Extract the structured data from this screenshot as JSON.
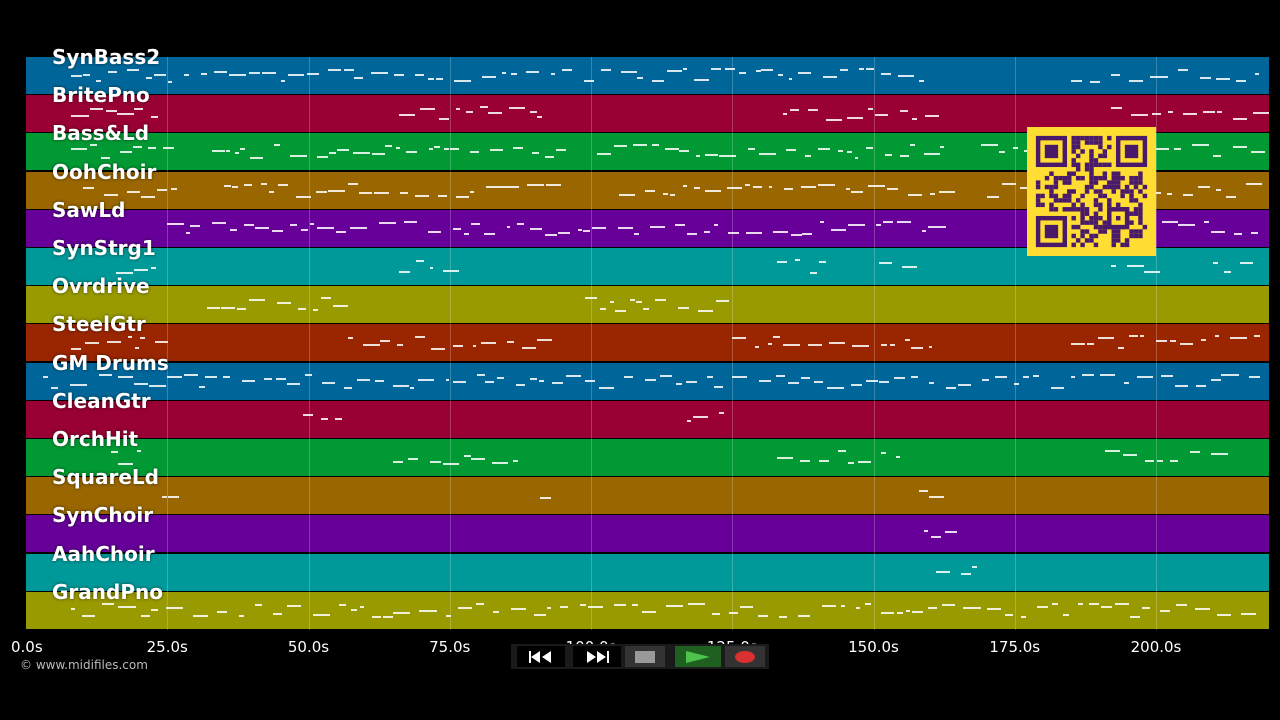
{
  "window": {
    "title": "MIDI piano roll"
  },
  "tracks": [
    {
      "name": "SynBass2",
      "color": "#006699"
    },
    {
      "name": "BritePno",
      "color": "#990033"
    },
    {
      "name": "Bass&Ld",
      "color": "#009933"
    },
    {
      "name": "OohChoir",
      "color": "#996600"
    },
    {
      "name": "SawLd",
      "color": "#660099"
    },
    {
      "name": "SynStrg1",
      "color": "#009999"
    },
    {
      "name": "Ovrdrive",
      "color": "#999900"
    },
    {
      "name": "SteelGtr",
      "color": "#992600"
    },
    {
      "name": "GM Drums",
      "color": "#006699"
    },
    {
      "name": "CleanGtr",
      "color": "#990033"
    },
    {
      "name": "OrchHit",
      "color": "#009933"
    },
    {
      "name": "SquareLd",
      "color": "#996600"
    },
    {
      "name": "SynChoir",
      "color": "#660099"
    },
    {
      "name": "AahChoir",
      "color": "#009999"
    },
    {
      "name": "GrandPno",
      "color": "#999900"
    }
  ],
  "timeline": {
    "ticks": [
      "0.0s",
      "25.0s",
      "50.0s",
      "75.0s",
      "100.0s",
      "125.0s",
      "150.0s",
      "175.0s",
      "200.0s"
    ],
    "tick_values": [
      0,
      25,
      50,
      75,
      100,
      125,
      150,
      175,
      200
    ],
    "max_seconds": 220
  },
  "transport": {
    "rewind_icon": "rewind-icon",
    "fast_forward_icon": "fast-forward-icon",
    "stop_icon": "stop-icon",
    "play_icon": "play-icon",
    "record_icon": "record-icon",
    "play_color": "#2e8b2e",
    "record_color": "#d93030"
  },
  "overlay": {
    "qr_icon": "qr-code-icon",
    "qr_color": "#ffdd33"
  },
  "footer": {
    "credit": "© www.midifiles.com"
  }
}
